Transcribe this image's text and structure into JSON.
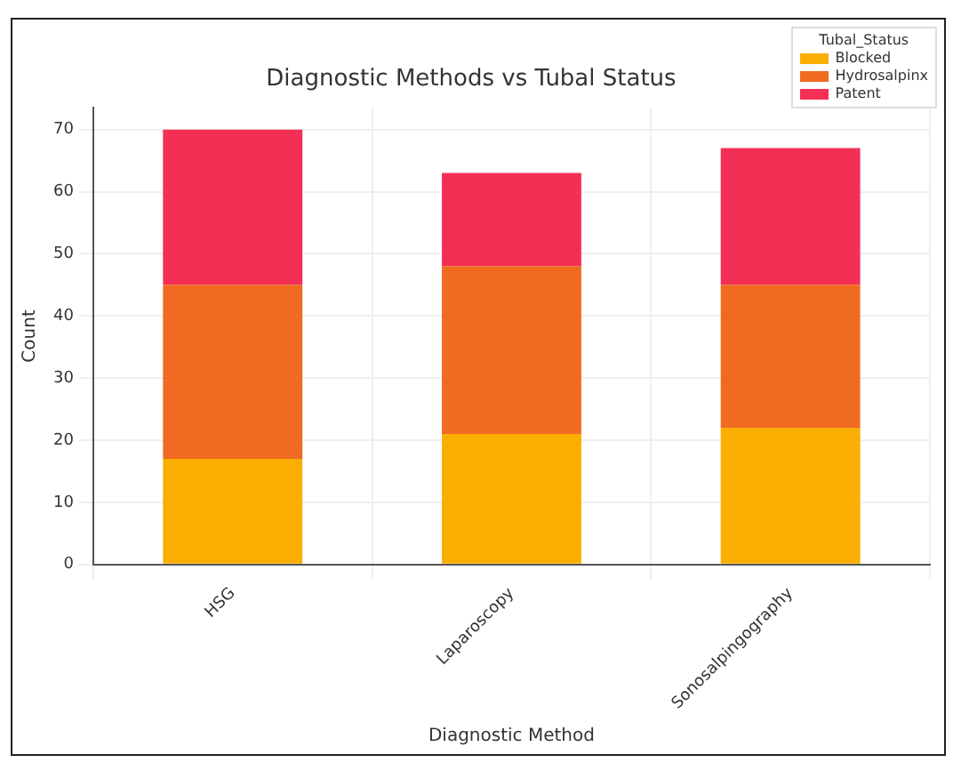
{
  "chart_data": {
    "type": "bar",
    "title": "Diagnostic Methods vs Tubal Status",
    "xlabel": "Diagnostic Method",
    "ylabel": "Count",
    "legend_title": "Tubal_Status",
    "categories": [
      "HSG",
      "Laparoscopy",
      "Sonosalpingography"
    ],
    "series": [
      {
        "name": "Blocked",
        "color": "#fbae02",
        "values": [
          17,
          21,
          22
        ]
      },
      {
        "name": "Hydrosalpinx",
        "color": "#f06a22",
        "values": [
          28,
          27,
          23
        ]
      },
      {
        "name": "Patent",
        "color": "#f42f55",
        "values": [
          25,
          15,
          22
        ]
      }
    ],
    "stacked": true,
    "ylim": [
      0,
      73.5
    ],
    "yticks": [
      0,
      10,
      20,
      30,
      40,
      50,
      60,
      70
    ],
    "grid": true,
    "legend": "top right"
  }
}
